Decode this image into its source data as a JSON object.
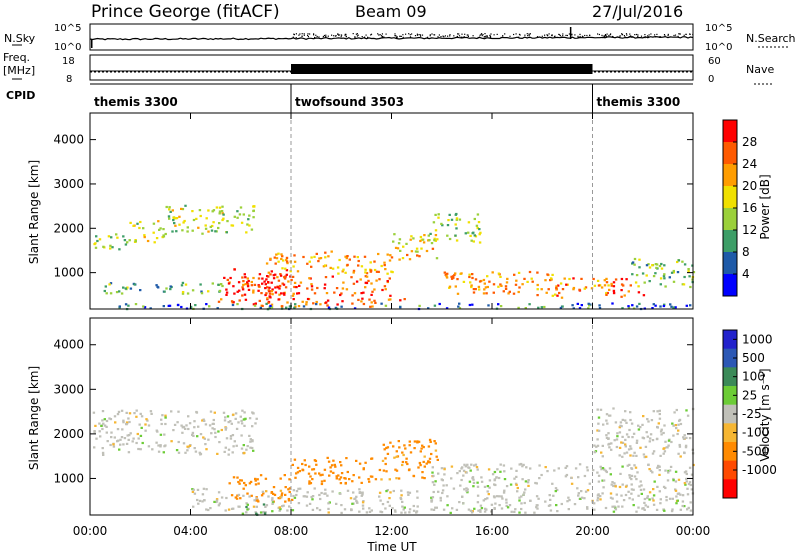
{
  "header": {
    "station": "Prince George (fitACF)",
    "beam": "Beam 09",
    "date": "27/Jul/2016"
  },
  "sky_panel": {
    "left_label": "N.Sky",
    "right_label": "N.Search",
    "left_ticks": [
      "10^5",
      "10^0"
    ],
    "right_ticks": [
      "10^5",
      "10^0"
    ]
  },
  "freq_panel": {
    "left_label": "Freq. [MHz]",
    "left_label_line1": "Freq.",
    "left_label_line2": "[MHz]",
    "right_label": "Nave",
    "left_ticks": [
      "18",
      "8"
    ],
    "right_ticks": [
      "60",
      "0"
    ]
  },
  "cpid": {
    "label": "CPID",
    "segments": [
      {
        "name": "themis 3300",
        "start_hour": 0,
        "end_hour": 8
      },
      {
        "name": "twofsound 3503",
        "start_hour": 8,
        "end_hour": 20
      },
      {
        "name": "themis 3300",
        "start_hour": 20,
        "end_hour": 24
      }
    ]
  },
  "power_colorbar": {
    "label": "Power [dB]",
    "ticks": [
      "28",
      "24",
      "20",
      "16",
      "12",
      "8",
      "4"
    ],
    "colors": [
      "#ff0000",
      "#ff5a00",
      "#ff9d00",
      "#f0e000",
      "#9bd03a",
      "#3d9e67",
      "#1e5aa8",
      "#0000ff"
    ]
  },
  "velocity_colorbar": {
    "label": "Velocity [m s⁻¹]",
    "ticks": [
      "1000",
      "500",
      "100",
      "25",
      "-25",
      "-100",
      "-500",
      "-1000"
    ],
    "colors": [
      "#2222cc",
      "#2c58b5",
      "#3b8a58",
      "#6ccc36",
      "#c0c0b8",
      "#f6b632",
      "#ff8a00",
      "#ff4a00",
      "#ff0000"
    ]
  },
  "chart_data": [
    {
      "type": "heatmap",
      "title": "Power",
      "ylabel": "Slant Range [km]",
      "xlabel": "",
      "x_range_hours": [
        0,
        24
      ],
      "ylim": [
        180,
        4600
      ],
      "y_ticks": [
        1000,
        2000,
        3000,
        4000
      ],
      "grid": false,
      "regions": [
        {
          "t0": 0.1,
          "t1": 1.5,
          "r0": 1550,
          "r1": 1950,
          "value_db": 13
        },
        {
          "t0": 1.5,
          "t1": 3.0,
          "r0": 1700,
          "r1": 2200,
          "value_db": 14
        },
        {
          "t0": 3.0,
          "t1": 6.6,
          "r0": 1900,
          "r1": 2550,
          "value_db": 13
        },
        {
          "t0": 0.5,
          "t1": 5.5,
          "r0": 550,
          "r1": 800,
          "value_db": 10
        },
        {
          "t0": 5.2,
          "t1": 7.8,
          "r0": 450,
          "r1": 1100,
          "value_db": 26
        },
        {
          "t0": 6.0,
          "t1": 12.0,
          "r0": 500,
          "r1": 950,
          "value_db": 25
        },
        {
          "t0": 5.0,
          "t1": 12.5,
          "r0": 250,
          "r1": 450,
          "value_db": 24
        },
        {
          "t0": 7.0,
          "t1": 12.0,
          "r0": 1000,
          "r1": 1500,
          "value_db": 20
        },
        {
          "t0": 12.0,
          "t1": 13.8,
          "r0": 1300,
          "r1": 1900,
          "value_db": 17
        },
        {
          "t0": 13.5,
          "t1": 15.5,
          "r0": 1700,
          "r1": 2350,
          "value_db": 12
        },
        {
          "t0": 14.0,
          "t1": 18.5,
          "r0": 500,
          "r1": 1050,
          "value_db": 20
        },
        {
          "t0": 18.5,
          "t1": 22.0,
          "r0": 450,
          "r1": 900,
          "value_db": 22
        },
        {
          "t0": 21.5,
          "t1": 24.0,
          "r0": 700,
          "r1": 1350,
          "value_db": 11
        },
        {
          "t0": 0.0,
          "t1": 24.0,
          "r0": 200,
          "r1": 330,
          "value_db": 6
        }
      ]
    },
    {
      "type": "heatmap",
      "title": "Velocity",
      "ylabel": "Slant Range [km]",
      "xlabel": "Time UT",
      "x_ticks": [
        "00:00",
        "04:00",
        "08:00",
        "12:00",
        "16:00",
        "20:00",
        "00:00"
      ],
      "x_range_hours": [
        0,
        24
      ],
      "ylim": [
        180,
        4600
      ],
      "y_ticks": [
        1000,
        2000,
        3000,
        4000
      ],
      "grid": false,
      "regions": [
        {
          "t0": 0.1,
          "t1": 6.6,
          "r0": 1550,
          "r1": 2550,
          "value_ms": 0
        },
        {
          "t0": 5.5,
          "t1": 8.0,
          "r0": 500,
          "r1": 1100,
          "value_ms": -150
        },
        {
          "t0": 8.0,
          "t1": 11.5,
          "r0": 900,
          "r1": 1500,
          "value_ms": -120
        },
        {
          "t0": 11.5,
          "t1": 13.8,
          "r0": 1000,
          "r1": 1900,
          "value_ms": -80
        },
        {
          "t0": 4.0,
          "t1": 13.0,
          "r0": 250,
          "r1": 800,
          "value_ms": 0
        },
        {
          "t0": 6.0,
          "t1": 7.0,
          "r0": 200,
          "r1": 450,
          "value_ms": 60
        },
        {
          "t0": 13.5,
          "t1": 24.0,
          "r0": 250,
          "r1": 1350,
          "value_ms": 0
        },
        {
          "t0": 20.0,
          "t1": 24.0,
          "r0": 1500,
          "r1": 2600,
          "value_ms": 0
        }
      ]
    }
  ]
}
